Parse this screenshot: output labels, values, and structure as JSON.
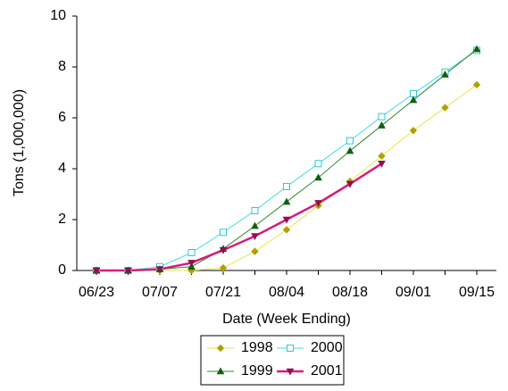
{
  "chart_data": {
    "type": "line",
    "x_label": "Date (Week Ending)",
    "y_label": "Tons (1,000,000)",
    "categories": [
      "06/23",
      null,
      "07/07",
      null,
      "07/21",
      null,
      "08/04",
      null,
      "08/18",
      null,
      "09/01",
      null,
      "09/15"
    ],
    "ylim": [
      0,
      10
    ],
    "yticks": [
      0,
      2,
      4,
      6,
      8,
      10
    ],
    "grid": false,
    "series": [
      {
        "name": "1998",
        "color": "#e6e64a",
        "marker_color": "#b0a000",
        "marker": "diamond",
        "line_width": 1,
        "values": [
          0,
          0,
          0,
          0,
          0.1,
          0.75,
          1.6,
          2.55,
          3.5,
          4.5,
          5.5,
          6.4,
          7.3
        ]
      },
      {
        "name": "2000",
        "color": "#3fdede",
        "marker_color": "#30c8d0",
        "marker": "square",
        "line_width": 1,
        "values": [
          0,
          0,
          0.15,
          0.7,
          1.5,
          2.35,
          3.3,
          4.2,
          5.1,
          6.05,
          6.95,
          7.8,
          8.65
        ]
      },
      {
        "name": "1999",
        "color": "#2e8b2e",
        "marker_color": "#106010",
        "marker": "triangle",
        "line_width": 1,
        "values": [
          0,
          0,
          0.05,
          0.15,
          0.85,
          1.75,
          2.7,
          3.65,
          4.7,
          5.7,
          6.7,
          7.7,
          8.7
        ]
      },
      {
        "name": "2001",
        "color": "#d81b7c",
        "marker_color": "#901050",
        "marker": "triangle-down",
        "line_width": 2.5,
        "values": [
          0,
          0,
          0.05,
          0.3,
          0.8,
          1.35,
          2.0,
          2.65,
          3.4,
          4.2,
          null,
          null,
          null
        ]
      }
    ]
  }
}
